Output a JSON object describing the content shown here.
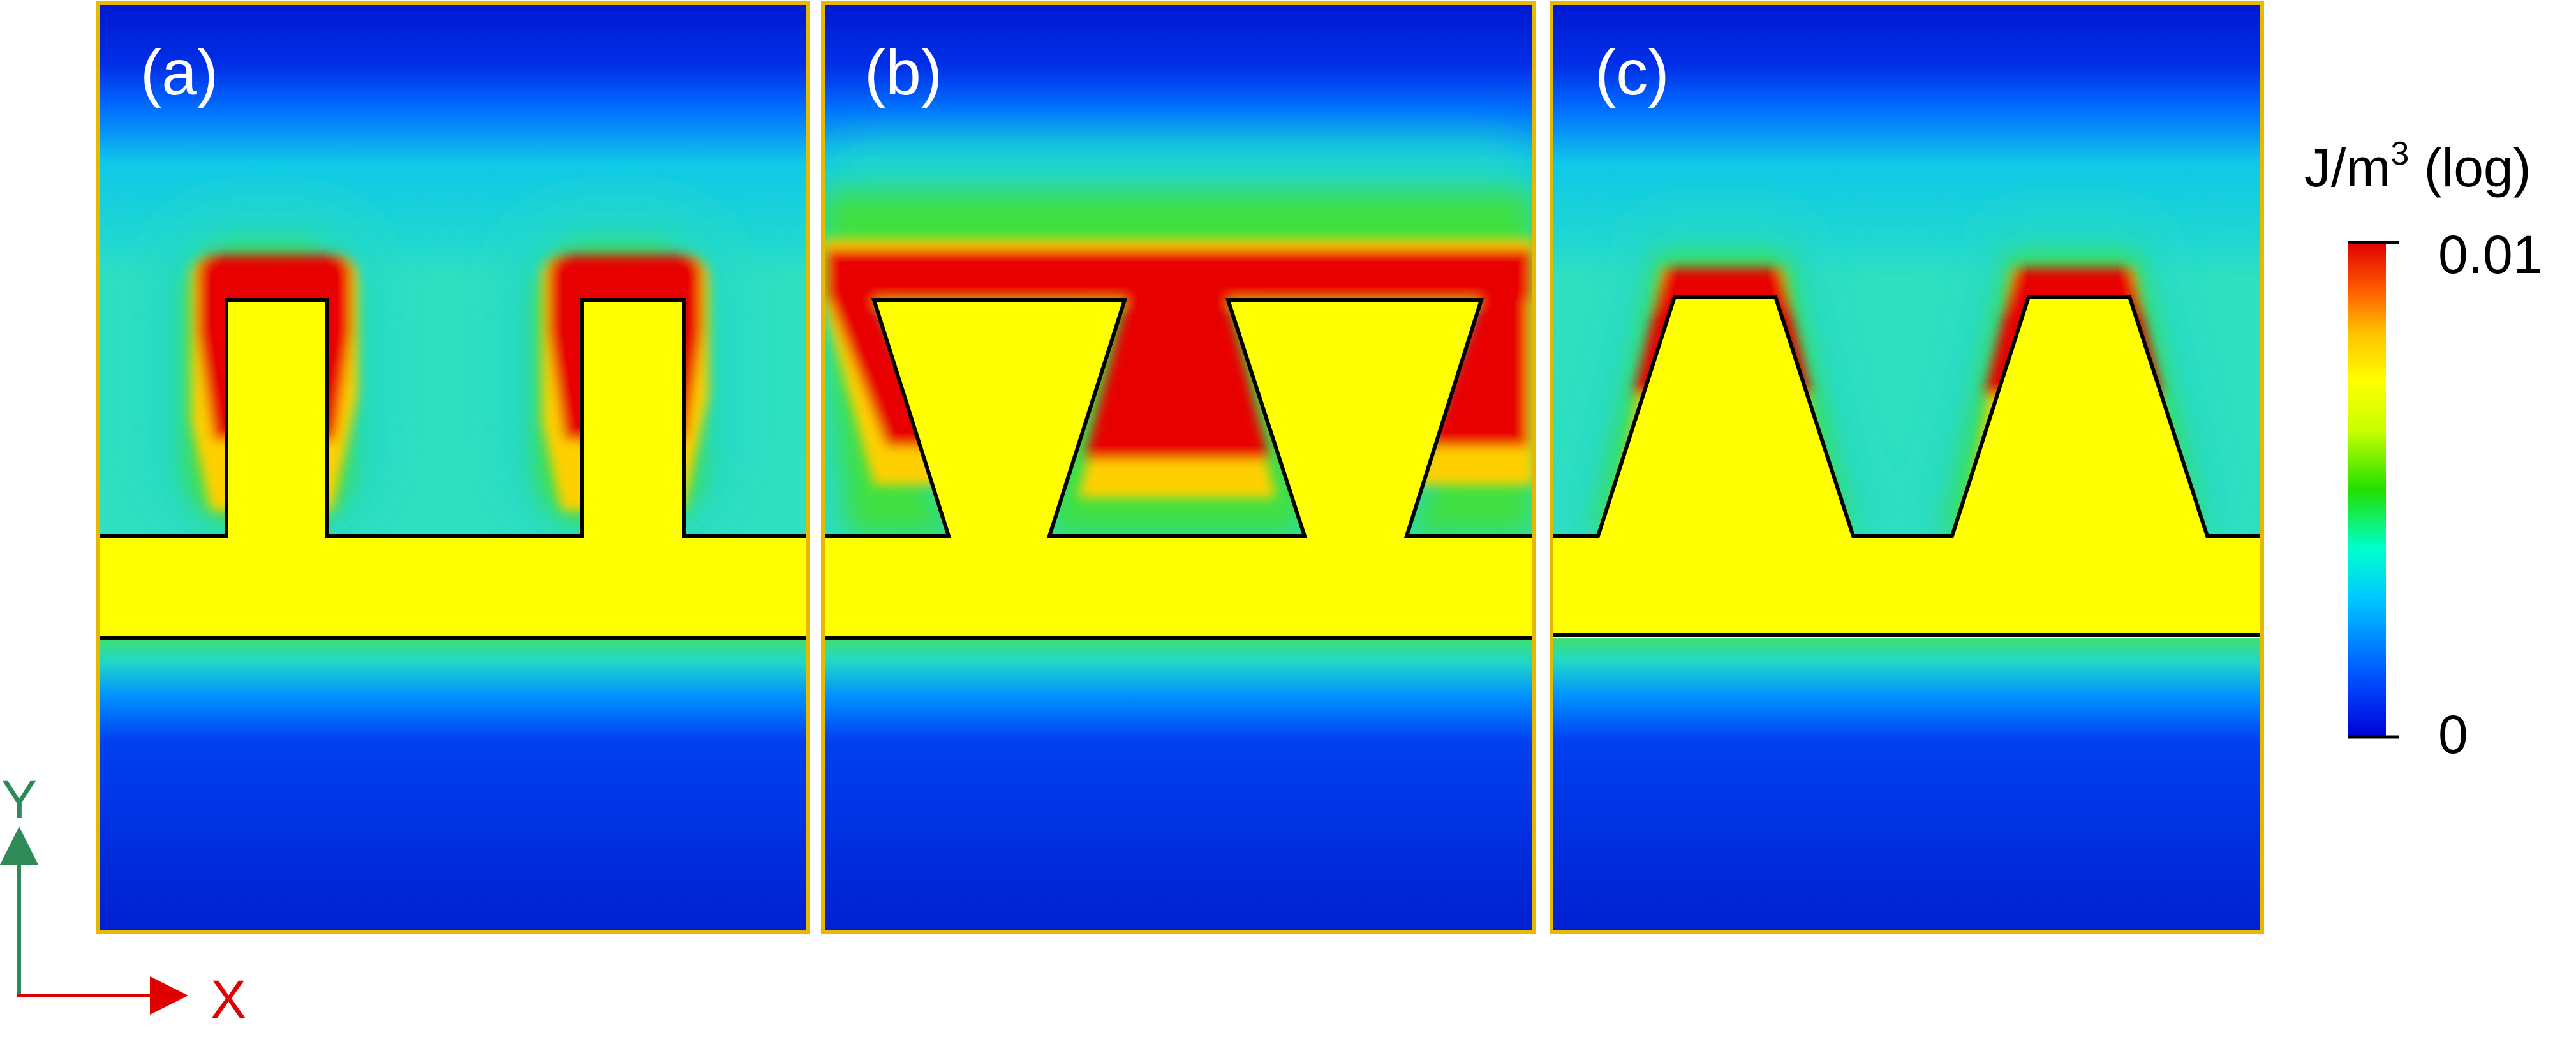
{
  "panels": [
    {
      "label": "(a)",
      "shape": "rectangular ridges"
    },
    {
      "label": "(b)",
      "shape": "inverted trapezoid ridges"
    },
    {
      "label": "(c)",
      "shape": "trapezoid ridges"
    }
  ],
  "colorbar": {
    "title_base": "J/m",
    "title_exp": "3",
    "title_suffix": " (log)",
    "max_label": "0.01",
    "min_label": "0",
    "colors": [
      "#0000d8",
      "#0050ff",
      "#00c8ff",
      "#00ffd0",
      "#20e000",
      "#c8ff00",
      "#ffff00",
      "#ffc000",
      "#ff6000",
      "#e00000"
    ]
  },
  "axes": {
    "y_label": "Y",
    "x_label": "X",
    "y_color": "#2e8b57",
    "x_color": "#e00000"
  },
  "colors": {
    "field_low": "#0018d0",
    "field_high": "#e80000",
    "metal": "#ffff00",
    "panel_border": "#e6b800"
  }
}
